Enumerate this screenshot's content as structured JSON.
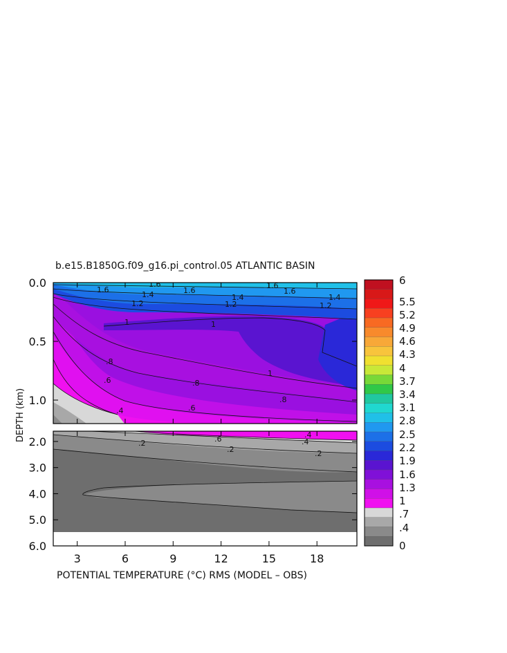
{
  "chart_data": {
    "type": "heatmap",
    "title": "b.e15.B1850G.f09_g16.pi_control.05 ATLANTIC BASIN",
    "xlabel": "POTENTIAL TEMPERATURE (°C) RMS (MODEL – OBS)",
    "ylabel": "DEPTH (km)",
    "xlim": [
      1.5,
      20.5
    ],
    "x_ticks": [
      "3",
      "6",
      "9",
      "12",
      "15",
      "18"
    ],
    "upper_panel": {
      "ylim": [
        0.0,
        1.2
      ],
      "y_ticks": [
        "0.0",
        "0.5",
        "1.0"
      ]
    },
    "lower_panel": {
      "ylim": [
        1.5,
        6.0
      ],
      "y_ticks": [
        "2.0",
        "3.0",
        "4.0",
        "5.0",
        "6.0"
      ]
    },
    "colorbar": {
      "tick_labels": [
        "6",
        "5.5",
        "5.2",
        "4.9",
        "4.6",
        "4.3",
        "4",
        "3.7",
        "3.4",
        "3.1",
        "2.8",
        "2.5",
        "2.2",
        "1.9",
        "1.6",
        "1.3",
        "1",
        ".7",
        ".4",
        "0"
      ],
      "colors": [
        "#c01020",
        "#d81818",
        "#f01818",
        "#f84020",
        "#f86a22",
        "#f88a2c",
        "#f8a838",
        "#f8c43c",
        "#f0e030",
        "#c8e838",
        "#78d838",
        "#30c848",
        "#20c8a0",
        "#20d8d0",
        "#20c0e8",
        "#2098f0",
        "#1c70e8",
        "#1c4ce0",
        "#2a28d8",
        "#5a14d0",
        "#8010d8",
        "#a810e0",
        "#d010e8",
        "#f010f0",
        "#d8d8d8",
        "#a8a8a8",
        "#8a8a8a",
        "#6e6e6e"
      ]
    },
    "contour_labels": [
      "1.6",
      "1.6",
      "1.6",
      "1.6",
      "1.6",
      "1.4",
      "1.4",
      "1.4",
      "1.2",
      "1.2",
      "1.2",
      "1",
      "1",
      "1",
      ".8",
      ".8",
      ".8",
      ".6",
      ".6",
      ".4",
      ".4",
      ".6",
      ".4",
      ".2",
      ".2",
      ".2"
    ]
  }
}
